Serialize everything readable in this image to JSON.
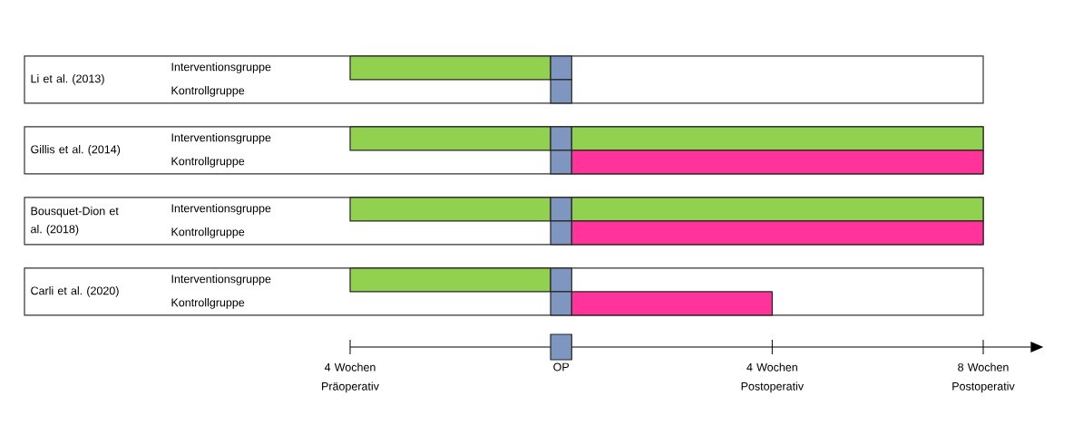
{
  "chart_data": {
    "type": "bar",
    "orientation": "horizontal",
    "categories": [
      "Interventionsgruppe",
      "Kontrollgruppe",
      "Interventionsgruppe",
      "Kontrollgruppe",
      "Interventionsgruppe",
      "Kontrollgruppe",
      "Interventionsgruppe",
      "Kontrollgruppe"
    ],
    "series": [
      {
        "color": "#92d050",
        "base": [
          -4,
          null,
          -4,
          null,
          -4,
          null,
          -4,
          null
        ],
        "values": [
          3.8,
          null,
          3.8,
          null,
          3.8,
          null,
          3.8,
          null
        ]
      },
      {
        "color": "#7f96c0",
        "base": [
          -0.2,
          -0.2,
          -0.2,
          -0.2,
          -0.2,
          -0.2,
          -0.2,
          -0.2
        ],
        "values": [
          0.4,
          0.4,
          0.4,
          0.4,
          0.4,
          0.4,
          0.4,
          0.4
        ]
      },
      {
        "colors": [
          "#92d050",
          "#ff3399",
          "#92d050",
          "#ff3399",
          "#92d050",
          "#ff3399",
          "#92d050",
          "#ff3399"
        ],
        "base": [
          null,
          null,
          0.2,
          0.2,
          0.2,
          0.2,
          null,
          0.2
        ],
        "values": [
          null,
          null,
          7.8,
          7.8,
          7.8,
          7.8,
          null,
          3.8
        ]
      }
    ],
    "xlim": [
      -4,
      8.9
    ],
    "xticks": [
      {
        "value": -4,
        "label": "4 Wochen Präoperativ"
      },
      {
        "value": 0,
        "label": "OP"
      },
      {
        "value": 4,
        "label": "4 Wochen Postoperativ"
      },
      {
        "value": 8,
        "label": "8 Wochen Postoperativ"
      }
    ],
    "annotations": [
      "Li et al. (2013)",
      "Gillis et al. (2014)",
      "Bousquet-Dion et al. (2018)",
      "Carli et al. (2020)"
    ],
    "grid": false
  }
}
